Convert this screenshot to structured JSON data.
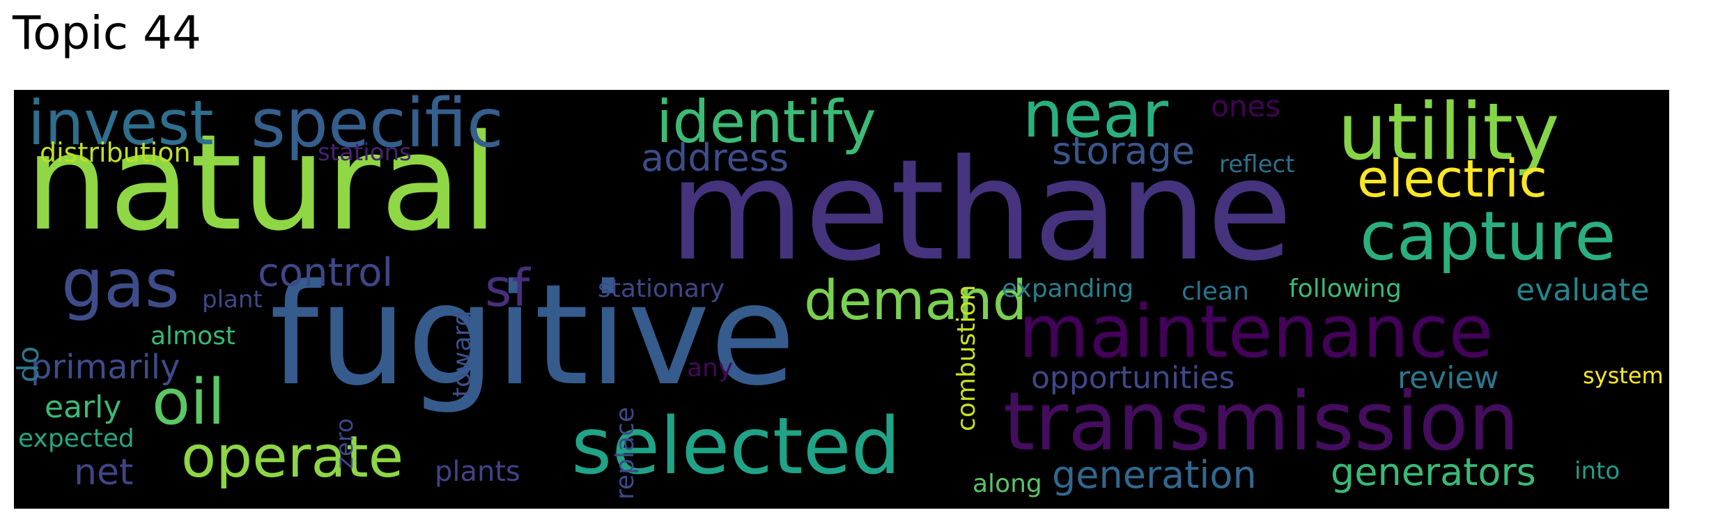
{
  "title": "Topic 44",
  "words": [
    {
      "text": "methane",
      "color": "#46337e"
    },
    {
      "text": "fugitive",
      "color": "#365c8d"
    },
    {
      "text": "natural",
      "color": "#8fd744"
    },
    {
      "text": "maintenance",
      "color": "#44015a"
    },
    {
      "text": "transmission",
      "color": "#440d5e"
    },
    {
      "text": "utility",
      "color": "#86d549"
    },
    {
      "text": "capture",
      "color": "#2ab07f"
    },
    {
      "text": "specific",
      "color": "#355f8d"
    },
    {
      "text": "invest",
      "color": "#2e6f8e"
    },
    {
      "text": "identify",
      "color": "#3bbb75"
    },
    {
      "text": "near",
      "color": "#2ab07f"
    },
    {
      "text": "selected",
      "color": "#20a386"
    },
    {
      "text": "gas",
      "color": "#3e4c8a"
    },
    {
      "text": "oil",
      "color": "#5ac864"
    },
    {
      "text": "operate",
      "color": "#8ed645"
    },
    {
      "text": "demand",
      "color": "#7ad151"
    },
    {
      "text": "electric",
      "color": "#fde725"
    },
    {
      "text": "sf",
      "color": "#472f7d"
    },
    {
      "text": "control",
      "color": "#3f4788"
    },
    {
      "text": "address",
      "color": "#3d4d8a"
    },
    {
      "text": "storage",
      "color": "#39568c"
    },
    {
      "text": "generation",
      "color": "#31688e"
    },
    {
      "text": "generators",
      "color": "#3aba76"
    },
    {
      "text": "opportunities",
      "color": "#3f4889"
    },
    {
      "text": "review",
      "color": "#2a788e"
    },
    {
      "text": "evaluate",
      "color": "#25848e"
    },
    {
      "text": "primarily",
      "color": "#3e4c8a"
    },
    {
      "text": "distribution",
      "color": "#c2df23"
    },
    {
      "text": "ones",
      "color": "#440154"
    },
    {
      "text": "stations",
      "color": "#482173"
    },
    {
      "text": "combustion",
      "color": "#c8e020"
    },
    {
      "text": "stationary",
      "color": "#3f4788"
    },
    {
      "text": "expanding",
      "color": "#27808e"
    },
    {
      "text": "clean",
      "color": "#2c738e"
    },
    {
      "text": "following",
      "color": "#3bbb75"
    },
    {
      "text": "plant",
      "color": "#3e4989"
    },
    {
      "text": "almost",
      "color": "#38b977"
    },
    {
      "text": "early",
      "color": "#3bbb75"
    },
    {
      "text": "expected",
      "color": "#22a785"
    },
    {
      "text": "net",
      "color": "#404588"
    },
    {
      "text": "plants",
      "color": "#414487"
    },
    {
      "text": "along",
      "color": "#56c667"
    },
    {
      "text": "into",
      "color": "#1f9e89"
    },
    {
      "text": "reflect",
      "color": "#2d708e"
    },
    {
      "text": "system",
      "color": "#fde725"
    },
    {
      "text": "any",
      "color": "#46085c"
    },
    {
      "text": "do",
      "color": "#2a788e"
    },
    {
      "text": "toward",
      "color": "#3b528b"
    },
    {
      "text": "replace",
      "color": "#3e4a89"
    },
    {
      "text": "zero",
      "color": "#3f4889"
    }
  ]
}
